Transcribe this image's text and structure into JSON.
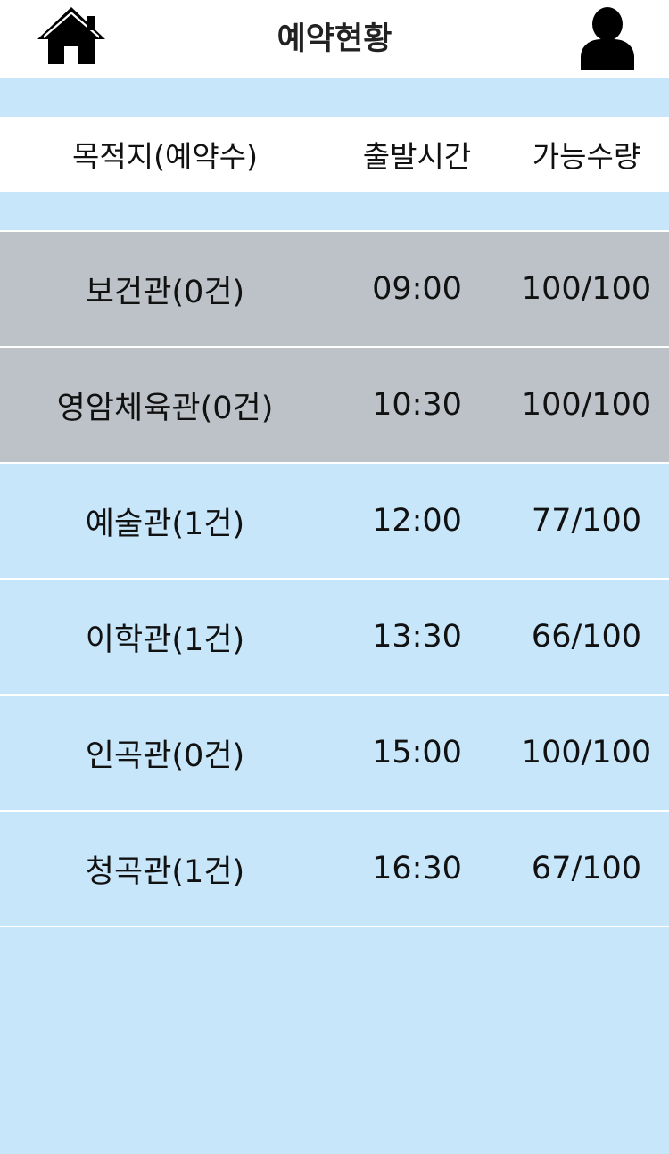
{
  "header": {
    "title": "예약현황",
    "home_icon": "home-icon",
    "user_icon": "user-icon"
  },
  "columns": {
    "destination": "목적지(예약수)",
    "departure": "출발시간",
    "capacity": "가능수량"
  },
  "colors": {
    "background": "#c7e6fa",
    "closed_row": "#bcc2c8",
    "white": "#ffffff"
  },
  "rows": [
    {
      "destination": "보건관(0건)",
      "departure": "09:00",
      "capacity": "100/100",
      "state": "closed"
    },
    {
      "destination": "영암체육관(0건)",
      "departure": "10:30",
      "capacity": "100/100",
      "state": "closed"
    },
    {
      "destination": "예술관(1건)",
      "departure": "12:00",
      "capacity": "77/100",
      "state": "open"
    },
    {
      "destination": "이학관(1건)",
      "departure": "13:30",
      "capacity": "66/100",
      "state": "open"
    },
    {
      "destination": "인곡관(0건)",
      "departure": "15:00",
      "capacity": "100/100",
      "state": "open"
    },
    {
      "destination": "청곡관(1건)",
      "departure": "16:30",
      "capacity": "67/100",
      "state": "open"
    }
  ]
}
